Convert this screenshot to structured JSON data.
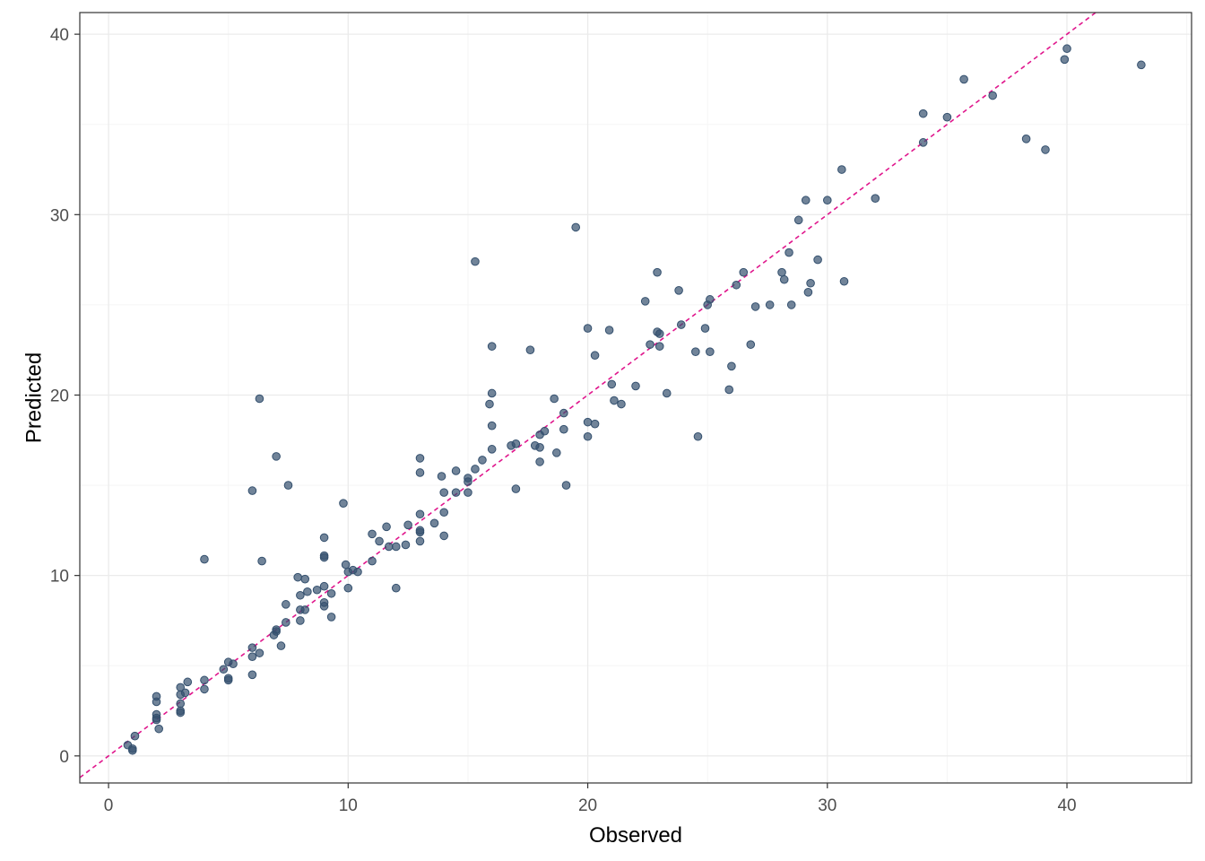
{
  "chart_data": {
    "type": "scatter",
    "title": "",
    "xlabel": "Observed",
    "ylabel": "Predicted",
    "xlim": [
      -1.2,
      45.2
    ],
    "ylim": [
      -1.5,
      41.2
    ],
    "x_ticks": [
      0,
      10,
      20,
      30,
      40
    ],
    "y_ticks": [
      0,
      10,
      20,
      30,
      40
    ],
    "grid": true,
    "legend": "none",
    "colors": {
      "points": "#34506e",
      "reference_line": "#e0168c",
      "grid_major": "#ebebeb",
      "grid_minor": "#f5f5f5",
      "panel_border": "#333333"
    },
    "reference_line": {
      "type": "identity",
      "slope": 1,
      "intercept": 0,
      "style": "dashed"
    },
    "series": [
      {
        "points": [
          [
            0.8,
            0.6
          ],
          [
            1,
            0.4
          ],
          [
            1,
            0.3
          ],
          [
            1.1,
            1.1
          ],
          [
            2,
            2.1
          ],
          [
            2,
            2.3
          ],
          [
            2,
            3
          ],
          [
            2,
            3.3
          ],
          [
            2.1,
            1.5
          ],
          [
            2,
            2
          ],
          [
            3,
            2.4
          ],
          [
            3,
            2.5
          ],
          [
            3,
            2.9
          ],
          [
            3,
            3.4
          ],
          [
            3,
            3.8
          ],
          [
            3.2,
            3.5
          ],
          [
            3.3,
            4.1
          ],
          [
            4,
            3.7
          ],
          [
            4,
            4.2
          ],
          [
            4,
            10.9
          ],
          [
            4.8,
            4.8
          ],
          [
            5,
            4.2
          ],
          [
            5,
            5.2
          ],
          [
            5.2,
            5.1
          ],
          [
            5,
            4.3
          ],
          [
            6,
            4.5
          ],
          [
            6,
            5.5
          ],
          [
            6,
            6
          ],
          [
            6,
            14.7
          ],
          [
            6.3,
            5.7
          ],
          [
            6.3,
            19.8
          ],
          [
            6.4,
            10.8
          ],
          [
            6.9,
            6.7
          ],
          [
            7,
            6.9
          ],
          [
            7,
            7
          ],
          [
            7,
            16.6
          ],
          [
            7.2,
            6.1
          ],
          [
            7.4,
            7.4
          ],
          [
            7.4,
            8.4
          ],
          [
            7.5,
            15
          ],
          [
            7.9,
            9.9
          ],
          [
            8,
            7.5
          ],
          [
            8,
            8.1
          ],
          [
            8,
            8.9
          ],
          [
            8.2,
            8.1
          ],
          [
            8.2,
            9.8
          ],
          [
            8.3,
            9.1
          ],
          [
            8.7,
            9.2
          ],
          [
            9,
            8.3
          ],
          [
            9,
            8.5
          ],
          [
            9,
            9.4
          ],
          [
            9,
            11.1
          ],
          [
            9,
            12.1
          ],
          [
            9,
            11
          ],
          [
            9.3,
            7.7
          ],
          [
            9.3,
            9
          ],
          [
            9.8,
            14
          ],
          [
            9.9,
            10.6
          ],
          [
            10,
            9.3
          ],
          [
            10,
            10.2
          ],
          [
            10.2,
            10.3
          ],
          [
            10.4,
            10.2
          ],
          [
            11,
            10.8
          ],
          [
            11,
            12.3
          ],
          [
            11.3,
            11.9
          ],
          [
            11.6,
            12.7
          ],
          [
            11.7,
            11.6
          ],
          [
            12,
            9.3
          ],
          [
            12,
            11.6
          ],
          [
            12.4,
            11.7
          ],
          [
            12.5,
            12.8
          ],
          [
            13,
            12.4
          ],
          [
            13,
            12.5
          ],
          [
            13,
            11.9
          ],
          [
            13,
            15.7
          ],
          [
            13,
            16.5
          ],
          [
            13,
            13.4
          ],
          [
            13.6,
            12.9
          ],
          [
            13.9,
            15.5
          ],
          [
            14,
            12.2
          ],
          [
            14,
            13.5
          ],
          [
            14,
            14.6
          ],
          [
            14.5,
            14.6
          ],
          [
            14.5,
            15.8
          ],
          [
            15,
            14.6
          ],
          [
            15,
            15.2
          ],
          [
            15,
            15.4
          ],
          [
            15.3,
            15.9
          ],
          [
            15.3,
            27.4
          ],
          [
            15.6,
            16.4
          ],
          [
            15.9,
            19.5
          ],
          [
            16,
            17
          ],
          [
            16,
            18.3
          ],
          [
            16,
            20.1
          ],
          [
            16,
            22.7
          ],
          [
            16.8,
            17.2
          ],
          [
            17,
            14.8
          ],
          [
            17,
            17.3
          ],
          [
            17.6,
            22.5
          ],
          [
            17.8,
            17.2
          ],
          [
            18,
            16.3
          ],
          [
            18,
            17.1
          ],
          [
            18,
            17.8
          ],
          [
            18.2,
            18
          ],
          [
            18.6,
            19.8
          ],
          [
            18.7,
            16.8
          ],
          [
            19,
            18.1
          ],
          [
            19,
            19
          ],
          [
            19.1,
            15
          ],
          [
            19.5,
            29.3
          ],
          [
            20,
            17.7
          ],
          [
            20,
            18.5
          ],
          [
            20,
            23.7
          ],
          [
            20.3,
            18.4
          ],
          [
            20.3,
            22.2
          ],
          [
            20.9,
            23.6
          ],
          [
            21,
            20.6
          ],
          [
            21.1,
            19.7
          ],
          [
            21.4,
            19.5
          ],
          [
            22,
            20.5
          ],
          [
            22.4,
            25.2
          ],
          [
            22.6,
            22.8
          ],
          [
            22.9,
            26.8
          ],
          [
            22.9,
            23.5
          ],
          [
            23,
            22.7
          ],
          [
            23,
            23.4
          ],
          [
            23.3,
            20.1
          ],
          [
            23.8,
            25.8
          ],
          [
            23.9,
            23.9
          ],
          [
            24.5,
            22.4
          ],
          [
            24.6,
            17.7
          ],
          [
            24.9,
            23.7
          ],
          [
            25,
            25
          ],
          [
            25.1,
            25.3
          ],
          [
            25.1,
            22.4
          ],
          [
            25.9,
            20.3
          ],
          [
            26,
            21.6
          ],
          [
            26.2,
            26.1
          ],
          [
            26.5,
            26.8
          ],
          [
            26.8,
            22.8
          ],
          [
            27,
            24.9
          ],
          [
            27.6,
            25
          ],
          [
            28.1,
            26.8
          ],
          [
            28.2,
            26.4
          ],
          [
            28.4,
            27.9
          ],
          [
            28.5,
            25
          ],
          [
            28.8,
            29.7
          ],
          [
            29.1,
            30.8
          ],
          [
            29.2,
            25.7
          ],
          [
            29.3,
            26.2
          ],
          [
            29.6,
            27.5
          ],
          [
            30,
            30.8
          ],
          [
            30.6,
            32.5
          ],
          [
            30.7,
            26.3
          ],
          [
            32,
            30.9
          ],
          [
            34,
            34
          ],
          [
            34,
            35.6
          ],
          [
            35,
            35.4
          ],
          [
            35.7,
            37.5
          ],
          [
            36.9,
            36.6
          ],
          [
            38.3,
            34.2
          ],
          [
            39.1,
            33.6
          ],
          [
            39.9,
            38.6
          ],
          [
            40,
            39.2
          ],
          [
            43.1,
            38.3
          ]
        ]
      }
    ]
  }
}
